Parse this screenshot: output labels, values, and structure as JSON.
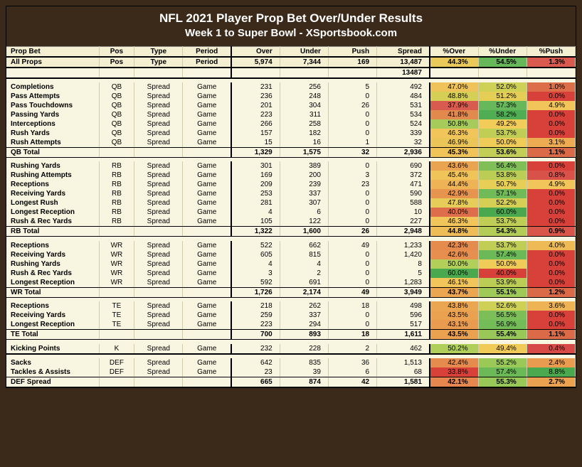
{
  "title_line1": "NFL 2021 Player Prop Bet Over/Under Results",
  "title_line2": "Week 1 to Super Bowl - XSportsbook.com",
  "columns": [
    "Prop Bet",
    "Pos",
    "Type",
    "Period",
    "Over",
    "Under",
    "Push",
    "Spread",
    "%Over",
    "%Under",
    "%Push"
  ],
  "subheader": [
    "All Props",
    "Pos",
    "Type",
    "Period",
    "5,974",
    "7,344",
    "169",
    "13,487",
    "44.3%",
    "54.5%",
    "1.3%"
  ],
  "subheader_pct_colors": [
    "#e8c95a",
    "#66b85a",
    "#d95a4f"
  ],
  "spread_dup_row": [
    "",
    "",
    "",
    "",
    "",
    "",
    "",
    "13487",
    "",
    "",
    ""
  ],
  "gradient": {
    "low": "#d7413a",
    "mid_low": "#ea9a4f",
    "mid": "#f5d458",
    "mid_high": "#b2cf5a",
    "high": "#4aa84e"
  },
  "sections": [
    {
      "rows": [
        {
          "c": [
            "Completions",
            "QB",
            "Spread",
            "Game",
            "231",
            "256",
            "5",
            "492",
            "47.0%",
            "52.0%",
            "1.0%"
          ],
          "pc": [
            "#efc35a",
            "#cfd156",
            "#dc6e4a"
          ]
        },
        {
          "c": [
            "Pass Attempts",
            "QB",
            "Spread",
            "Game",
            "236",
            "248",
            "0",
            "484",
            "48.8%",
            "51.2%",
            "0.0%"
          ],
          "pc": [
            "#d6cf56",
            "#e4ce56",
            "#d7413a"
          ]
        },
        {
          "c": [
            "Pass Touchdowns",
            "QB",
            "Spread",
            "Game",
            "201",
            "304",
            "26",
            "531",
            "37.9%",
            "57.3%",
            "4.9%"
          ],
          "pc": [
            "#d95a4f",
            "#67b85a",
            "#f1c559"
          ]
        },
        {
          "c": [
            "Passing Yards",
            "QB",
            "Spread",
            "Game",
            "223",
            "311",
            "0",
            "534",
            "41.8%",
            "58.2%",
            "0.0%"
          ],
          "pc": [
            "#e28a4e",
            "#4fae53",
            "#d7413a"
          ]
        },
        {
          "c": [
            "Interceptions",
            "QB",
            "Spread",
            "Game",
            "266",
            "258",
            "0",
            "524",
            "50.8%",
            "49.2%",
            "0.0%"
          ],
          "pc": [
            "#a6cb5a",
            "#f2cc58",
            "#d7413a"
          ]
        },
        {
          "c": [
            "Rush Yards",
            "QB",
            "Spread",
            "Game",
            "157",
            "182",
            "0",
            "339",
            "46.3%",
            "53.7%",
            "0.0%"
          ],
          "pc": [
            "#f1c559",
            "#c0ce56",
            "#d7413a"
          ]
        },
        {
          "c": [
            "Rush Attempts",
            "QB",
            "Spread",
            "Game",
            "15",
            "16",
            "1",
            "32",
            "46.9%",
            "50.0%",
            "3.1%"
          ],
          "pc": [
            "#ecc559",
            "#efcb58",
            "#edab52"
          ]
        }
      ],
      "total": {
        "c": [
          "QB Total",
          "",
          "",
          "",
          "1,329",
          "1,575",
          "32",
          "2,936",
          "45.3%",
          "53.6%",
          "1.1%"
        ],
        "pc": [
          "#f0c459",
          "#c3ce57",
          "#db6a49"
        ]
      }
    },
    {
      "rows": [
        {
          "c": [
            "Rushing Yards",
            "RB",
            "Spread",
            "Game",
            "301",
            "389",
            "0",
            "690",
            "43.6%",
            "56.4%",
            "0.0%"
          ],
          "pc": [
            "#eaa351",
            "#80bf58",
            "#d7413a"
          ]
        },
        {
          "c": [
            "Rushing Attempts",
            "RB",
            "Spread",
            "Game",
            "169",
            "200",
            "3",
            "372",
            "45.4%",
            "53.8%",
            "0.8%"
          ],
          "pc": [
            "#f1c459",
            "#bccd56",
            "#d9524a"
          ]
        },
        {
          "c": [
            "Receptions",
            "RB",
            "Spread",
            "Game",
            "209",
            "239",
            "23",
            "471",
            "44.4%",
            "50.7%",
            "4.9%"
          ],
          "pc": [
            "#edb355",
            "#e7ce57",
            "#f1c559"
          ]
        },
        {
          "c": [
            "Receiving Yards",
            "RB",
            "Spread",
            "Game",
            "253",
            "337",
            "0",
            "590",
            "42.9%",
            "57.1%",
            "0.0%"
          ],
          "pc": [
            "#e7944f",
            "#70bb57",
            "#d7413a"
          ]
        },
        {
          "c": [
            "Longest Rush",
            "RB",
            "Spread",
            "Game",
            "281",
            "307",
            "0",
            "588",
            "47.8%",
            "52.2%",
            "0.0%"
          ],
          "pc": [
            "#e6cc58",
            "#d6cf56",
            "#d7413a"
          ]
        },
        {
          "c": [
            "Longest Reception",
            "RB",
            "Spread",
            "Game",
            "4",
            "6",
            "0",
            "10",
            "40.0%",
            "60.0%",
            "0.0%"
          ],
          "pc": [
            "#de6e4b",
            "#4aa84e",
            "#d7413a"
          ]
        },
        {
          "c": [
            "Rush & Rec Yards",
            "RB",
            "Spread",
            "Game",
            "105",
            "122",
            "0",
            "227",
            "46.3%",
            "53.7%",
            "0.0%"
          ],
          "pc": [
            "#f1c559",
            "#c0ce56",
            "#d7413a"
          ]
        }
      ],
      "total": {
        "c": [
          "RB Total",
          "",
          "",
          "",
          "1,322",
          "1,600",
          "26",
          "2,948",
          "44.8%",
          "54.3%",
          "0.9%"
        ],
        "pc": [
          "#eebd57",
          "#b3cd57",
          "#d9564b"
        ]
      }
    },
    {
      "rows": [
        {
          "c": [
            "Receptions",
            "WR",
            "Spread",
            "Game",
            "522",
            "662",
            "49",
            "1,233",
            "42.3%",
            "53.7%",
            "4.0%"
          ],
          "pc": [
            "#e68b4e",
            "#c0ce56",
            "#eeba56"
          ]
        },
        {
          "c": [
            "Receiving Yards",
            "WR",
            "Spread",
            "Game",
            "605",
            "815",
            "0",
            "1,420",
            "42.6%",
            "57.4%",
            "0.0%"
          ],
          "pc": [
            "#e68f4e",
            "#6cba57",
            "#d7413a"
          ]
        },
        {
          "c": [
            "Rushing Yards",
            "WR",
            "Spread",
            "Game",
            "4",
            "4",
            "0",
            "8",
            "50.0%",
            "50.0%",
            "0.0%"
          ],
          "pc": [
            "#b2cf5a",
            "#efcb58",
            "#d7413a"
          ]
        },
        {
          "c": [
            "Rush & Rec Yards",
            "WR",
            "Spread",
            "Game",
            "3",
            "2",
            "0",
            "5",
            "60.0%",
            "40.0%",
            "0.0%"
          ],
          "pc": [
            "#4aa84e",
            "#d7413a",
            "#d7413a"
          ]
        },
        {
          "c": [
            "Longest Reception",
            "WR",
            "Spread",
            "Game",
            "592",
            "691",
            "0",
            "1,283",
            "46.1%",
            "53.9%",
            "0.0%"
          ],
          "pc": [
            "#f1c559",
            "#bccd56",
            "#d7413a"
          ]
        }
      ],
      "total": {
        "c": [
          "WR Total",
          "",
          "",
          "",
          "1,726",
          "2,174",
          "49",
          "3,949",
          "43.7%",
          "55.1%",
          "1.2%"
        ],
        "pc": [
          "#eba651",
          "#a0ca58",
          "#db6a49"
        ]
      }
    },
    {
      "rows": [
        {
          "c": [
            "Receptions",
            "TE",
            "Spread",
            "Game",
            "218",
            "262",
            "18",
            "498",
            "43.8%",
            "52.6%",
            "3.6%"
          ],
          "pc": [
            "#eba651",
            "#cfd156",
            "#edb355"
          ]
        },
        {
          "c": [
            "Receiving Yards",
            "TE",
            "Spread",
            "Game",
            "259",
            "337",
            "0",
            "596",
            "43.5%",
            "56.5%",
            "0.0%"
          ],
          "pc": [
            "#eaa251",
            "#7cbe58",
            "#d7413a"
          ]
        },
        {
          "c": [
            "Longest Reception",
            "TE",
            "Spread",
            "Game",
            "223",
            "294",
            "0",
            "517",
            "43.1%",
            "56.9%",
            "0.0%"
          ],
          "pc": [
            "#e99b50",
            "#74bc57",
            "#d7413a"
          ]
        }
      ],
      "total": {
        "c": [
          "TE Total",
          "",
          "",
          "",
          "700",
          "893",
          "18",
          "1,611",
          "43.5%",
          "55.4%",
          "1.1%"
        ],
        "pc": [
          "#eaa251",
          "#97c858",
          "#db6a49"
        ]
      }
    },
    {
      "rows": [
        {
          "c": [
            "Kicking Points",
            "K",
            "Spread",
            "Game",
            "232",
            "228",
            "2",
            "462",
            "50.2%",
            "49.4%",
            "0.4%"
          ],
          "pc": [
            "#afce5a",
            "#f1cb58",
            "#d84a47"
          ]
        }
      ],
      "total": null
    },
    {
      "rows": [
        {
          "c": [
            "Sacks",
            "DEF",
            "Spread",
            "Game",
            "642",
            "835",
            "36",
            "1,513",
            "42.4%",
            "55.2%",
            "2.4%"
          ],
          "pc": [
            "#e68b4e",
            "#9ac958",
            "#e99b50"
          ]
        },
        {
          "c": [
            "Tackles & Assists",
            "DEF",
            "Spread",
            "Game",
            "23",
            "39",
            "6",
            "68",
            "33.8%",
            "57.4%",
            "8.8%"
          ],
          "pc": [
            "#d7413a",
            "#6cba57",
            "#4aa84e"
          ]
        }
      ],
      "total": {
        "c": [
          "DEF Spread",
          "",
          "",
          "",
          "665",
          "874",
          "42",
          "1,581",
          "42.1%",
          "55.3%",
          "2.7%"
        ],
        "pc": [
          "#e5874e",
          "#97c858",
          "#eaa251"
        ]
      }
    }
  ]
}
